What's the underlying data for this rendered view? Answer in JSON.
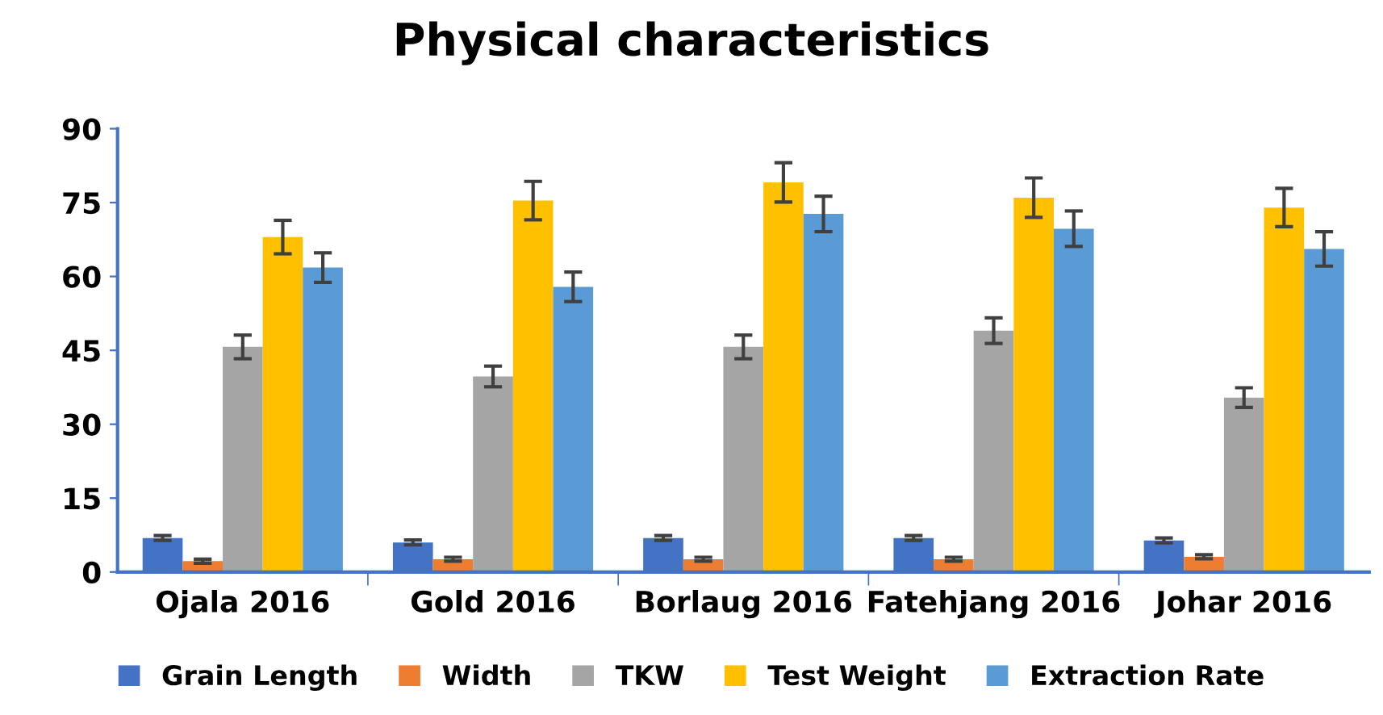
{
  "chart_data": {
    "type": "bar",
    "title": "Physical characteristics",
    "categories": [
      "Ojala 2016",
      "Gold 2016",
      "Borlaug 2016",
      "Fatehjang 2016",
      "Johar 2016"
    ],
    "series": [
      {
        "name": "Grain Length",
        "color": "#4472c4",
        "values": [
          6.9,
          6.0,
          6.9,
          6.9,
          6.4
        ],
        "errors": [
          0.5,
          0.5,
          0.5,
          0.5,
          0.5
        ]
      },
      {
        "name": "Width",
        "color": "#ed7d31",
        "values": [
          2.2,
          2.6,
          2.6,
          2.6,
          3.1
        ],
        "errors": [
          0.4,
          0.4,
          0.4,
          0.4,
          0.4
        ]
      },
      {
        "name": "TKW",
        "color": "#a5a5a5",
        "values": [
          45.7,
          39.7,
          45.7,
          49.0,
          35.4
        ],
        "errors": [
          2.4,
          2.1,
          2.4,
          2.6,
          2.0
        ]
      },
      {
        "name": "Test Weight",
        "color": "#ffc000",
        "values": [
          68.0,
          75.4,
          79.1,
          76.0,
          74.0
        ],
        "errors": [
          3.4,
          3.9,
          4.0,
          4.0,
          3.9
        ]
      },
      {
        "name": "Extraction Rate",
        "color": "#5b9bd5",
        "values": [
          61.8,
          57.9,
          72.7,
          69.7,
          65.6
        ],
        "errors": [
          3.0,
          3.0,
          3.6,
          3.6,
          3.5
        ]
      }
    ],
    "ylim": [
      0,
      90
    ],
    "yticks": [
      0,
      15,
      30,
      45,
      60,
      75,
      90
    ],
    "grid": false,
    "legend": "bottom"
  }
}
